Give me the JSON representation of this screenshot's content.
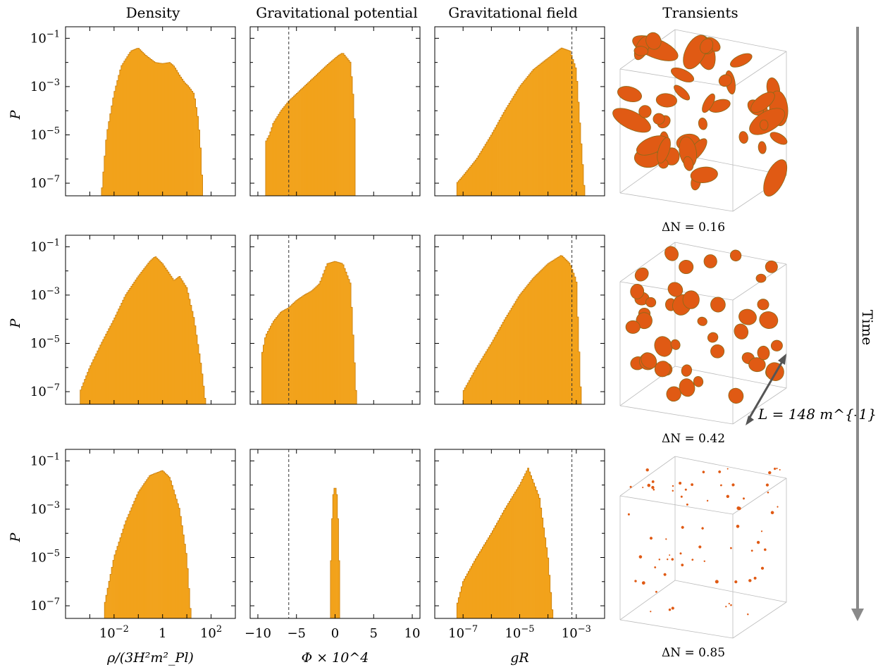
{
  "column_titles": [
    "Density",
    "Gravitational potential",
    "Gravitational field",
    "Transients"
  ],
  "row_ylabel": "P",
  "y_ticks": [
    "10^{-1}",
    "10^{-3}",
    "10^{-5}",
    "10^{-7}"
  ],
  "time_label": "Time",
  "box_size_label": "L = 148 m^{-1}",
  "transient_labels": [
    "ΔN = 0.16",
    "ΔN = 0.42",
    "ΔN = 0.85"
  ],
  "colors": {
    "hist": "#f2a21b",
    "hist_edge": "#c97e0a",
    "blob": "#e05a14",
    "dashed": "#333333",
    "arrow": "#8a8a8a"
  },
  "chart_data": [
    {
      "type": "histogram",
      "row": 0,
      "panel": "density",
      "xscale": "log",
      "yscale": "log",
      "xlabel": "",
      "ylabel": "P",
      "xlim": [
        0.0001,
        1000
      ],
      "ylim": [
        3e-08,
        0.3
      ],
      "x": [
        0.003,
        0.005,
        0.01,
        0.02,
        0.05,
        0.1,
        0.2,
        0.5,
        1,
        2,
        3,
        5,
        8,
        12,
        20,
        30,
        40,
        45
      ],
      "y": [
        3e-08,
        1e-05,
        0.0005,
        0.007,
        0.03,
        0.04,
        0.02,
        0.01,
        0.009,
        0.01,
        0.007,
        0.003,
        0.0015,
        0.001,
        0.0005,
        4e-05,
        1e-06,
        3e-08
      ]
    },
    {
      "type": "histogram",
      "row": 0,
      "panel": "potential",
      "xscale": "linear",
      "yscale": "log",
      "xlabel": "",
      "ylabel": "",
      "xlim": [
        -11,
        11
      ],
      "ylim": [
        3e-08,
        0.3
      ],
      "vline": -6,
      "x": [
        -9,
        -8.5,
        -8,
        -7,
        -6,
        -5,
        -4,
        -3,
        -2,
        -1,
        0,
        0.5,
        1,
        2,
        2.5,
        2.6
      ],
      "y": [
        5e-06,
        1e-05,
        3e-05,
        0.0001,
        0.00025,
        0.0005,
        0.001,
        0.002,
        0.004,
        0.008,
        0.015,
        0.02,
        0.025,
        0.01,
        0.0001,
        3e-08
      ]
    },
    {
      "type": "histogram",
      "row": 0,
      "panel": "field",
      "xscale": "log",
      "yscale": "log",
      "xlabel": "",
      "ylabel": "",
      "xlim": [
        1e-08,
        0.01
      ],
      "ylim": [
        3e-08,
        0.3
      ],
      "vline": 0.0007,
      "x": [
        6e-08,
        1e-07,
        3e-07,
        1e-06,
        3e-06,
        1e-05,
        3e-05,
        0.0001,
        0.0003,
        0.0006,
        0.001,
        0.002
      ],
      "y": [
        1e-07,
        2e-07,
        1e-06,
        1e-05,
        0.0001,
        0.001,
        0.005,
        0.015,
        0.04,
        0.03,
        0.005,
        3e-08
      ]
    },
    {
      "type": "histogram",
      "row": 1,
      "panel": "density",
      "xscale": "log",
      "yscale": "log",
      "xlabel": "",
      "ylabel": "P",
      "xlim": [
        0.0001,
        1000
      ],
      "ylim": [
        3e-08,
        0.3
      ],
      "x": [
        0.0004,
        0.001,
        0.003,
        0.01,
        0.03,
        0.1,
        0.3,
        0.5,
        1,
        3,
        5,
        10,
        20,
        40,
        60
      ],
      "y": [
        1e-07,
        1e-06,
        1e-05,
        0.0001,
        0.001,
        0.006,
        0.025,
        0.04,
        0.02,
        0.004,
        0.006,
        0.002,
        0.0001,
        1e-06,
        3e-08
      ]
    },
    {
      "type": "histogram",
      "row": 1,
      "panel": "potential",
      "xscale": "linear",
      "yscale": "log",
      "xlabel": "",
      "ylabel": "",
      "xlim": [
        -11,
        11
      ],
      "ylim": [
        3e-08,
        0.3
      ],
      "vline": -6,
      "x": [
        -9.5,
        -9,
        -8,
        -7,
        -6,
        -5,
        -4,
        -3,
        -2,
        -1,
        0,
        1,
        2,
        2.8
      ],
      "y": [
        3e-06,
        2e-05,
        8e-05,
        0.0002,
        0.0003,
        0.0006,
        0.001,
        0.0015,
        0.003,
        0.02,
        0.025,
        0.02,
        0.003,
        3e-08
      ]
    },
    {
      "type": "histogram",
      "row": 1,
      "panel": "field",
      "xscale": "log",
      "yscale": "log",
      "xlabel": "",
      "ylabel": "",
      "xlim": [
        1e-08,
        0.01
      ],
      "ylim": [
        3e-08,
        0.3
      ],
      "vline": 0.0007,
      "x": [
        1e-07,
        3e-07,
        1e-06,
        3e-06,
        1e-05,
        3e-05,
        0.0001,
        0.0003,
        0.0006,
        0.001,
        0.0015
      ],
      "y": [
        1e-07,
        1e-06,
        1e-05,
        0.0001,
        0.001,
        0.005,
        0.02,
        0.045,
        0.02,
        0.004,
        3e-08
      ]
    },
    {
      "type": "histogram",
      "row": 2,
      "panel": "density",
      "xscale": "log",
      "yscale": "log",
      "xlabel": "ρ/(3H²m²_Pl)",
      "ylabel": "P",
      "xlim": [
        0.0001,
        1000
      ],
      "ylim": [
        3e-08,
        0.3
      ],
      "x": [
        0.004,
        0.01,
        0.03,
        0.1,
        0.3,
        1,
        2,
        5,
        10,
        15
      ],
      "y": [
        1e-07,
        1e-05,
        0.0003,
        0.005,
        0.025,
        0.04,
        0.02,
        0.001,
        1e-05,
        3e-08
      ]
    },
    {
      "type": "histogram",
      "row": 2,
      "panel": "potential",
      "xscale": "linear",
      "yscale": "log",
      "xlabel": "Φ × 10^4",
      "ylabel": "",
      "xlim": [
        -11,
        11
      ],
      "ylim": [
        3e-08,
        0.3
      ],
      "vline": -6,
      "x": [
        -0.6,
        -0.3,
        0,
        0.3,
        0.6
      ],
      "y": [
        1e-06,
        0.003,
        0.01,
        0.003,
        1e-06
      ]
    },
    {
      "type": "histogram",
      "row": 2,
      "panel": "field",
      "xscale": "log",
      "yscale": "log",
      "xlabel": "gR",
      "ylabel": "",
      "xlim": [
        1e-08,
        0.01
      ],
      "ylim": [
        3e-08,
        0.3
      ],
      "vline": 0.0007,
      "x": [
        6e-08,
        1e-07,
        3e-07,
        1e-06,
        3e-06,
        1e-05,
        2e-05,
        5e-05,
        0.0001,
        0.00015
      ],
      "y": [
        1e-07,
        1e-06,
        1e-05,
        0.0001,
        0.001,
        0.01,
        0.05,
        0.003,
        1e-05,
        3e-08
      ]
    }
  ]
}
